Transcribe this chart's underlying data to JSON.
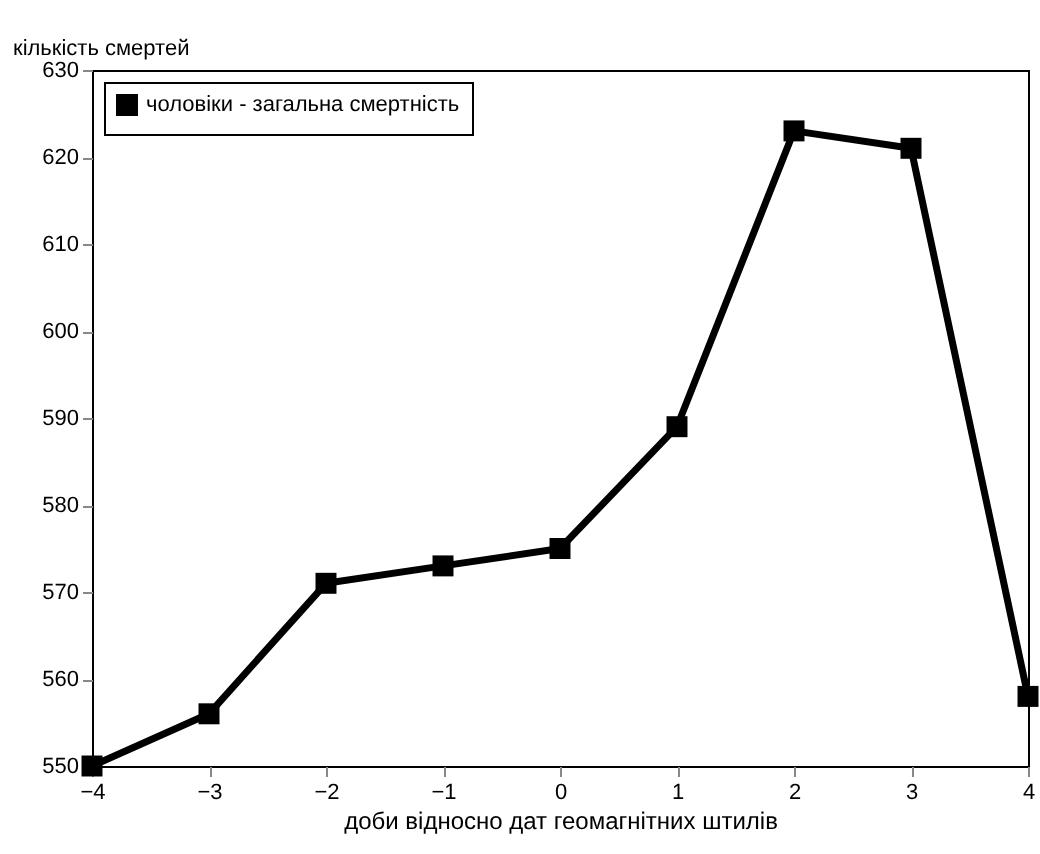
{
  "chart_data": {
    "type": "line",
    "xlabel": "доби відносно дат геомагнітних штилів",
    "ylabel": "кількість смертей",
    "x": [
      -4,
      -3,
      -2,
      -1,
      0,
      1,
      2,
      3,
      4
    ],
    "series": [
      {
        "name": "чоловіки - загальна смертність",
        "color": "#000000",
        "values": [
          550,
          556,
          571,
          573,
          575,
          589,
          623,
          621,
          558
        ]
      }
    ],
    "xlim": [
      -4,
      4
    ],
    "xticks": [
      -4,
      -3,
      -2,
      -1,
      0,
      1,
      2,
      3,
      4
    ],
    "ylim": [
      550,
      630
    ],
    "yticks": [
      550,
      560,
      570,
      580,
      590,
      600,
      610,
      620,
      630
    ],
    "marker": "square",
    "line_style": "solid",
    "legend": "top left",
    "grid": false
  }
}
